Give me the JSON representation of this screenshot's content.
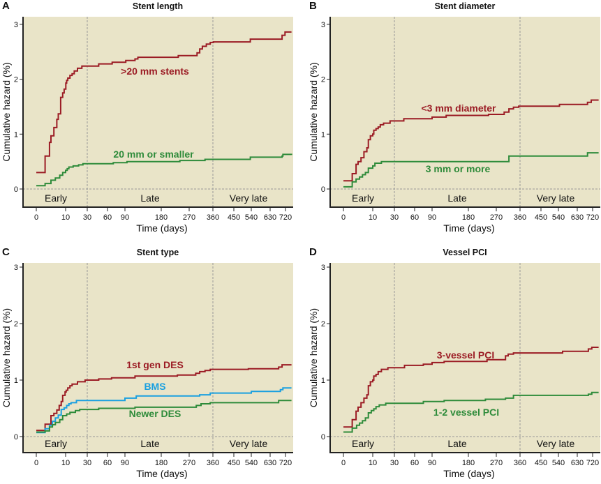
{
  "chart_data": [
    {
      "type": "line",
      "panel": "A",
      "title": "Stent length",
      "xlabel": "Time (days)",
      "ylabel": "Cumulative hazard (%)",
      "ylim": [
        0,
        3
      ],
      "yticks": [
        "0",
        "1",
        "2",
        "3"
      ],
      "xticks": [
        "0",
        "10",
        "30",
        "60",
        "90",
        "180",
        "270",
        "360",
        "450",
        "540",
        "630",
        "720"
      ],
      "regions": [
        "Early",
        "Late",
        "Very late"
      ],
      "region_boundaries_days": [
        30,
        360
      ],
      "series": [
        {
          "name": ">20 mm stents",
          "color": "#9b1b24",
          "points": [
            [
              0,
              0.3
            ],
            [
              3,
              0.6
            ],
            [
              4.5,
              0.85
            ],
            [
              5,
              0.97
            ],
            [
              6,
              1.12
            ],
            [
              7,
              1.27
            ],
            [
              7.5,
              1.37
            ],
            [
              8.3,
              1.67
            ],
            [
              9,
              1.75
            ],
            [
              9.5,
              1.82
            ],
            [
              10.2,
              1.93
            ],
            [
              11,
              1.98
            ],
            [
              12,
              2.02
            ],
            [
              14,
              2.07
            ],
            [
              16,
              2.1
            ],
            [
              18,
              2.15
            ],
            [
              21,
              2.2
            ],
            [
              25,
              2.24
            ],
            [
              47,
              2.28
            ],
            [
              68,
              2.31
            ],
            [
              92,
              2.34
            ],
            [
              115,
              2.37
            ],
            [
              122,
              2.4
            ],
            [
              235,
              2.43
            ],
            [
              300,
              2.48
            ],
            [
              310,
              2.55
            ],
            [
              320,
              2.6
            ],
            [
              335,
              2.64
            ],
            [
              350,
              2.67
            ],
            [
              362,
              2.68
            ],
            [
              535,
              2.73
            ],
            [
              700,
              2.8
            ],
            [
              717,
              2.86
            ],
            [
              755,
              2.86
            ]
          ]
        },
        {
          "name": "20 mm or smaller",
          "color": "#2e8b3a",
          "points": [
            [
              0,
              0.06
            ],
            [
              3,
              0.1
            ],
            [
              5,
              0.16
            ],
            [
              6.5,
              0.2
            ],
            [
              8,
              0.25
            ],
            [
              9,
              0.3
            ],
            [
              10,
              0.34
            ],
            [
              11.5,
              0.37
            ],
            [
              13,
              0.4
            ],
            [
              17,
              0.42
            ],
            [
              22,
              0.44
            ],
            [
              26,
              0.46
            ],
            [
              70,
              0.48
            ],
            [
              95,
              0.5
            ],
            [
              240,
              0.52
            ],
            [
              330,
              0.54
            ],
            [
              535,
              0.58
            ],
            [
              700,
              0.6
            ],
            [
              705,
              0.63
            ],
            [
              755,
              0.62
            ]
          ]
        }
      ]
    },
    {
      "type": "line",
      "panel": "B",
      "title": "Stent diameter",
      "xlabel": "Time (days)",
      "ylabel": "Cumulative hazard (%)",
      "ylim": [
        0,
        3
      ],
      "yticks": [
        "0",
        "1",
        "2",
        "3"
      ],
      "xticks": [
        "0",
        "10",
        "30",
        "60",
        "90",
        "180",
        "270",
        "360",
        "450",
        "540",
        "630",
        "720"
      ],
      "regions": [
        "Early",
        "Late",
        "Very late"
      ],
      "region_boundaries_days": [
        30,
        360
      ],
      "series": [
        {
          "name": "<3 mm diameter",
          "color": "#9b1b24",
          "points": [
            [
              0,
              0.15
            ],
            [
              3,
              0.28
            ],
            [
              4.3,
              0.45
            ],
            [
              5,
              0.5
            ],
            [
              6,
              0.57
            ],
            [
              7,
              0.68
            ],
            [
              8,
              0.75
            ],
            [
              8.5,
              0.9
            ],
            [
              9.2,
              0.97
            ],
            [
              10,
              1.0
            ],
            [
              11,
              1.07
            ],
            [
              13,
              1.1
            ],
            [
              15,
              1.13
            ],
            [
              17,
              1.17
            ],
            [
              20,
              1.2
            ],
            [
              26,
              1.24
            ],
            [
              44,
              1.28
            ],
            [
              90,
              1.31
            ],
            [
              125,
              1.34
            ],
            [
              245,
              1.36
            ],
            [
              300,
              1.4
            ],
            [
              318,
              1.46
            ],
            [
              335,
              1.49
            ],
            [
              355,
              1.51
            ],
            [
              545,
              1.54
            ],
            [
              690,
              1.58
            ],
            [
              712,
              1.62
            ],
            [
              755,
              1.62
            ]
          ]
        },
        {
          "name": "3 mm or more",
          "color": "#2e8b3a",
          "points": [
            [
              0,
              0.04
            ],
            [
              3,
              0.13
            ],
            [
              4.3,
              0.18
            ],
            [
              5.5,
              0.22
            ],
            [
              6.5,
              0.26
            ],
            [
              7.5,
              0.3
            ],
            [
              8.5,
              0.38
            ],
            [
              10,
              0.42
            ],
            [
              12,
              0.47
            ],
            [
              18,
              0.5
            ],
            [
              318,
              0.6
            ],
            [
              690,
              0.66
            ],
            [
              755,
              0.66
            ]
          ]
        }
      ]
    },
    {
      "type": "line",
      "panel": "C",
      "title": "Stent type",
      "xlabel": "Time (days)",
      "ylabel": "Cumulative hazard (%)",
      "ylim": [
        0,
        3
      ],
      "yticks": [
        "0",
        "1",
        "2",
        "3"
      ],
      "xticks": [
        "0",
        "10",
        "30",
        "60",
        "90",
        "180",
        "270",
        "360",
        "450",
        "540",
        "630",
        "720"
      ],
      "regions": [
        "Early",
        "Late",
        "Very late"
      ],
      "region_boundaries_days": [
        30,
        360
      ],
      "series": [
        {
          "name": "1st gen DES",
          "color": "#9b1b24",
          "points": [
            [
              0,
              0.11
            ],
            [
              3,
              0.22
            ],
            [
              5,
              0.37
            ],
            [
              6,
              0.41
            ],
            [
              7,
              0.47
            ],
            [
              7.8,
              0.55
            ],
            [
              8.5,
              0.62
            ],
            [
              9,
              0.73
            ],
            [
              9.8,
              0.79
            ],
            [
              10.5,
              0.82
            ],
            [
              12,
              0.86
            ],
            [
              14,
              0.9
            ],
            [
              16,
              0.93
            ],
            [
              21,
              0.97
            ],
            [
              28,
              1.0
            ],
            [
              47,
              1.02
            ],
            [
              67,
              1.04
            ],
            [
              115,
              1.07
            ],
            [
              232,
              1.09
            ],
            [
              295,
              1.12
            ],
            [
              310,
              1.15
            ],
            [
              330,
              1.17
            ],
            [
              350,
              1.19
            ],
            [
              525,
              1.2
            ],
            [
              680,
              1.23
            ],
            [
              700,
              1.27
            ],
            [
              755,
              1.27
            ]
          ]
        },
        {
          "name": "BMS",
          "color": "#1aa0e0",
          "points": [
            [
              0,
              0.07
            ],
            [
              3,
              0.14
            ],
            [
              4.5,
              0.2
            ],
            [
              5.5,
              0.27
            ],
            [
              6.5,
              0.33
            ],
            [
              7.5,
              0.38
            ],
            [
              8.5,
              0.48
            ],
            [
              9.5,
              0.51
            ],
            [
              11,
              0.55
            ],
            [
              13,
              0.58
            ],
            [
              15,
              0.6
            ],
            [
              20,
              0.64
            ],
            [
              90,
              0.68
            ],
            [
              118,
              0.72
            ],
            [
              310,
              0.74
            ],
            [
              350,
              0.77
            ],
            [
              540,
              0.8
            ],
            [
              690,
              0.83
            ],
            [
              705,
              0.86
            ],
            [
              755,
              0.86
            ]
          ]
        },
        {
          "name": "Newer DES",
          "color": "#2e8b3a",
          "points": [
            [
              0,
              0.08
            ],
            [
              3,
              0.1
            ],
            [
              4.5,
              0.17
            ],
            [
              5.5,
              0.21
            ],
            [
              6.5,
              0.25
            ],
            [
              8,
              0.3
            ],
            [
              9,
              0.37
            ],
            [
              11,
              0.4
            ],
            [
              14,
              0.43
            ],
            [
              19,
              0.46
            ],
            [
              23,
              0.48
            ],
            [
              47,
              0.5
            ],
            [
              115,
              0.52
            ],
            [
              297,
              0.55
            ],
            [
              315,
              0.58
            ],
            [
              350,
              0.6
            ],
            [
              680,
              0.64
            ],
            [
              755,
              0.64
            ]
          ]
        }
      ]
    },
    {
      "type": "line",
      "panel": "D",
      "title": "Vessel PCI",
      "xlabel": "Time (days)",
      "ylabel": "Cumulative hazard (%)",
      "ylim": [
        0,
        3
      ],
      "yticks": [
        "0",
        "1",
        "2",
        "3"
      ],
      "xticks": [
        "0",
        "10",
        "30",
        "60",
        "90",
        "180",
        "270",
        "360",
        "450",
        "540",
        "630",
        "720"
      ],
      "regions": [
        "Early",
        "Late",
        "Very late"
      ],
      "region_boundaries_days": [
        30,
        360
      ],
      "series": [
        {
          "name": "3-vessel PCI",
          "color": "#9b1b24",
          "points": [
            [
              0,
              0.17
            ],
            [
              3,
              0.3
            ],
            [
              4.3,
              0.45
            ],
            [
              5,
              0.52
            ],
            [
              6,
              0.6
            ],
            [
              7,
              0.68
            ],
            [
              8,
              0.74
            ],
            [
              8.5,
              0.9
            ],
            [
              9.2,
              0.97
            ],
            [
              10,
              1.0
            ],
            [
              11,
              1.07
            ],
            [
              13,
              1.1
            ],
            [
              15,
              1.15
            ],
            [
              18,
              1.19
            ],
            [
              24,
              1.22
            ],
            [
              45,
              1.26
            ],
            [
              75,
              1.28
            ],
            [
              90,
              1.31
            ],
            [
              120,
              1.33
            ],
            [
              240,
              1.36
            ],
            [
              305,
              1.43
            ],
            [
              315,
              1.46
            ],
            [
              335,
              1.48
            ],
            [
              560,
              1.51
            ],
            [
              695,
              1.55
            ],
            [
              715,
              1.58
            ],
            [
              755,
              1.58
            ]
          ]
        },
        {
          "name": "1-2 vessel PCI",
          "color": "#2e8b3a",
          "points": [
            [
              0,
              0.08
            ],
            [
              3,
              0.15
            ],
            [
              4.5,
              0.2
            ],
            [
              5.5,
              0.24
            ],
            [
              6.5,
              0.28
            ],
            [
              7.5,
              0.33
            ],
            [
              8.5,
              0.42
            ],
            [
              9.5,
              0.46
            ],
            [
              11,
              0.49
            ],
            [
              13,
              0.53
            ],
            [
              16,
              0.56
            ],
            [
              22,
              0.59
            ],
            [
              75,
              0.62
            ],
            [
              120,
              0.64
            ],
            [
              235,
              0.66
            ],
            [
              305,
              0.68
            ],
            [
              335,
              0.73
            ],
            [
              695,
              0.75
            ],
            [
              715,
              0.78
            ],
            [
              755,
              0.78
            ]
          ]
        }
      ]
    }
  ]
}
